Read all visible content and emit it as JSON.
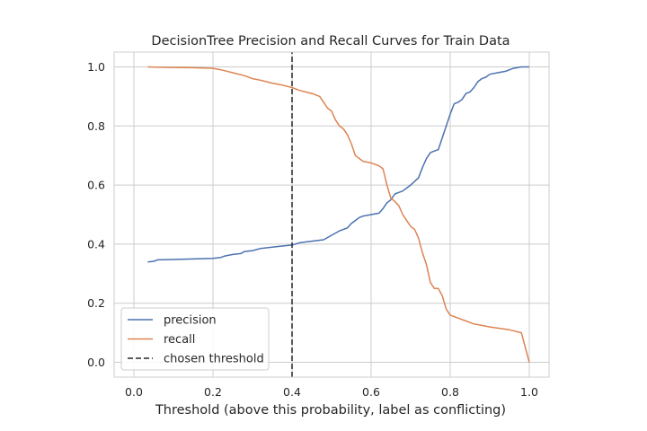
{
  "chart_data": {
    "type": "line",
    "title": "DecisionTree Precision and Recall Curves for Train Data",
    "xlabel": "Threshold (above this probability, label as conflicting)",
    "ylabel": "",
    "xlim": [
      -0.05,
      1.05
    ],
    "ylim": [
      -0.05,
      1.05
    ],
    "xticks": [
      0.0,
      0.2,
      0.4,
      0.6,
      0.8,
      1.0
    ],
    "xtick_labels": [
      "0.0",
      "0.2",
      "0.4",
      "0.6",
      "0.8",
      "1.0"
    ],
    "yticks": [
      0.0,
      0.2,
      0.4,
      0.6,
      0.8,
      1.0
    ],
    "ytick_labels": [
      "0.0",
      "0.2",
      "0.4",
      "0.6",
      "0.8",
      "1.0"
    ],
    "grid": true,
    "legend_position": "lower-left",
    "series": [
      {
        "name": "precision",
        "color": "#4c72b0",
        "style": "solid",
        "x": [
          0.035,
          0.05,
          0.06,
          0.1,
          0.15,
          0.2,
          0.22,
          0.23,
          0.25,
          0.27,
          0.28,
          0.3,
          0.32,
          0.35,
          0.37,
          0.4,
          0.42,
          0.45,
          0.48,
          0.5,
          0.52,
          0.54,
          0.55,
          0.56,
          0.57,
          0.58,
          0.6,
          0.62,
          0.63,
          0.64,
          0.65,
          0.66,
          0.67,
          0.68,
          0.69,
          0.7,
          0.72,
          0.73,
          0.74,
          0.75,
          0.76,
          0.77,
          0.78,
          0.79,
          0.8,
          0.81,
          0.82,
          0.83,
          0.84,
          0.85,
          0.86,
          0.87,
          0.88,
          0.89,
          0.9,
          0.92,
          0.94,
          0.95,
          0.96,
          0.98,
          1.0
        ],
        "y": [
          0.34,
          0.342,
          0.347,
          0.348,
          0.35,
          0.352,
          0.355,
          0.36,
          0.365,
          0.368,
          0.375,
          0.378,
          0.385,
          0.39,
          0.393,
          0.397,
          0.405,
          0.41,
          0.415,
          0.43,
          0.445,
          0.455,
          0.47,
          0.48,
          0.49,
          0.495,
          0.5,
          0.505,
          0.52,
          0.54,
          0.55,
          0.57,
          0.575,
          0.58,
          0.59,
          0.6,
          0.625,
          0.66,
          0.69,
          0.71,
          0.715,
          0.72,
          0.76,
          0.8,
          0.84,
          0.875,
          0.88,
          0.89,
          0.91,
          0.915,
          0.93,
          0.95,
          0.96,
          0.965,
          0.975,
          0.98,
          0.985,
          0.99,
          0.995,
          1.0,
          1.0
        ]
      },
      {
        "name": "recall",
        "color": "#dd8452",
        "style": "solid",
        "x": [
          0.035,
          0.05,
          0.1,
          0.15,
          0.2,
          0.22,
          0.25,
          0.28,
          0.3,
          0.32,
          0.35,
          0.37,
          0.4,
          0.42,
          0.45,
          0.47,
          0.48,
          0.49,
          0.5,
          0.51,
          0.52,
          0.53,
          0.54,
          0.55,
          0.56,
          0.57,
          0.58,
          0.6,
          0.62,
          0.63,
          0.64,
          0.65,
          0.66,
          0.67,
          0.68,
          0.69,
          0.7,
          0.71,
          0.72,
          0.73,
          0.74,
          0.75,
          0.76,
          0.77,
          0.78,
          0.79,
          0.8,
          0.82,
          0.84,
          0.86,
          0.88,
          0.9,
          0.95,
          0.98,
          1.0
        ],
        "y": [
          1.0,
          0.999,
          0.998,
          0.997,
          0.995,
          0.99,
          0.98,
          0.97,
          0.96,
          0.955,
          0.945,
          0.94,
          0.93,
          0.92,
          0.91,
          0.9,
          0.88,
          0.86,
          0.85,
          0.82,
          0.8,
          0.79,
          0.77,
          0.74,
          0.7,
          0.69,
          0.68,
          0.675,
          0.665,
          0.655,
          0.6,
          0.555,
          0.545,
          0.53,
          0.5,
          0.48,
          0.46,
          0.45,
          0.42,
          0.37,
          0.33,
          0.27,
          0.25,
          0.25,
          0.225,
          0.18,
          0.16,
          0.15,
          0.14,
          0.13,
          0.125,
          0.12,
          0.11,
          0.1,
          0.0
        ]
      },
      {
        "name": "chosen threshold",
        "color": "#262626",
        "style": "dashed",
        "x": [
          0.4,
          0.4
        ],
        "y": [
          -0.05,
          1.05
        ]
      }
    ]
  }
}
